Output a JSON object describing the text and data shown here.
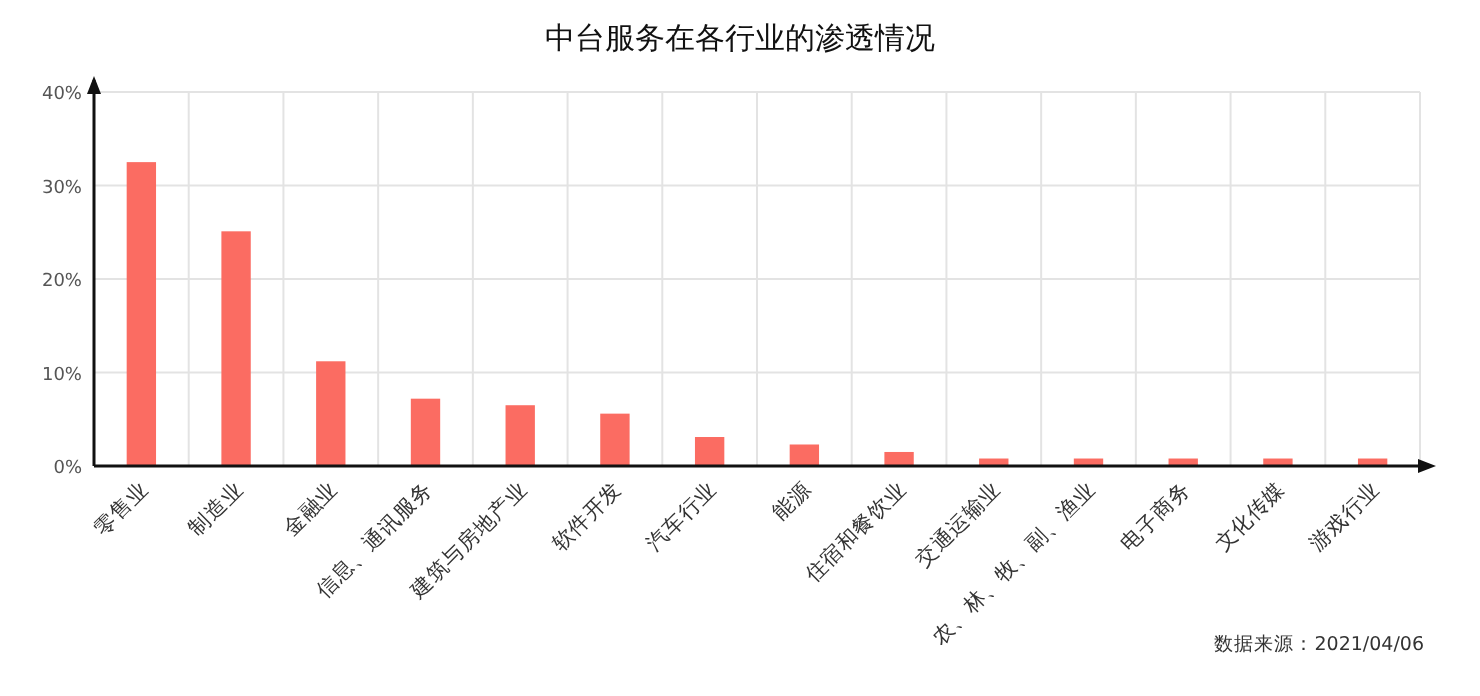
{
  "chart_data": {
    "type": "bar",
    "title": "中台服务在各行业的渗透情况",
    "categories": [
      "零售业",
      "制造业",
      "金融业",
      "信息、通讯服务",
      "建筑与房地产业",
      "软件开发",
      "汽车行业",
      "能源",
      "住宿和餐饮业",
      "交通运输业",
      "农、林、牧、副、渔业",
      "电子商务",
      "文化传媒",
      "游戏行业"
    ],
    "values": [
      32.5,
      25.1,
      11.2,
      7.2,
      6.5,
      5.6,
      3.1,
      2.3,
      1.5,
      0.8,
      0.8,
      0.8,
      0.8,
      0.8
    ],
    "color": "#fb6c62",
    "ylim": [
      0,
      40
    ],
    "yticks": [
      {
        "value": 0,
        "label": "0%"
      },
      {
        "value": 10,
        "label": "10%"
      },
      {
        "value": 20,
        "label": "20%"
      },
      {
        "value": 30,
        "label": "30%"
      },
      {
        "value": 40,
        "label": "40%"
      }
    ],
    "grid": true,
    "annotations": [
      "数据来源：2021/04/06"
    ]
  }
}
